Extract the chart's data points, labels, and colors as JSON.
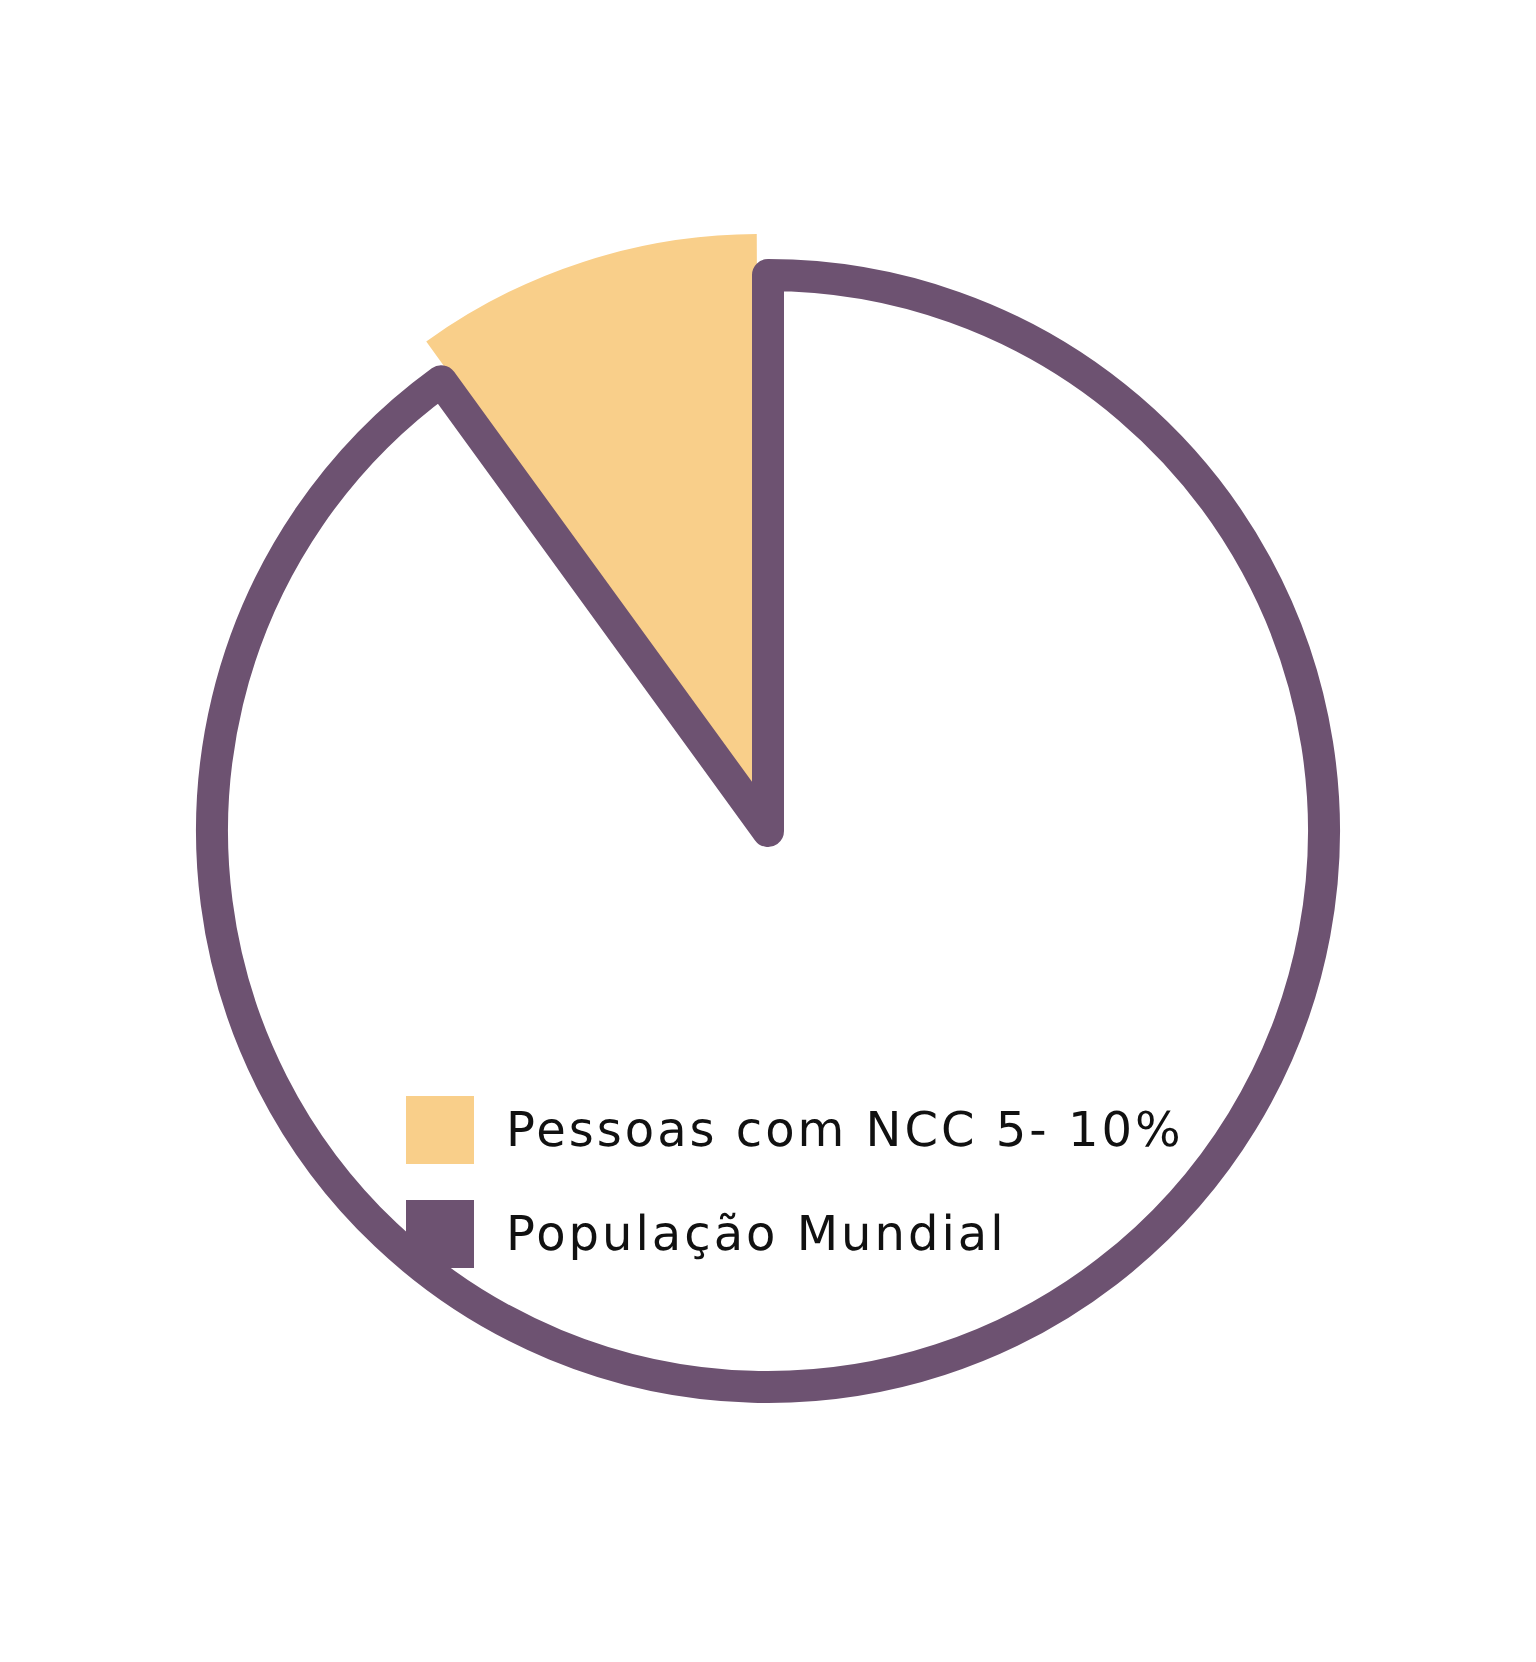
{
  "chart_data": {
    "type": "pie",
    "categories": [
      "Pessoas com NCC 5- 10%",
      "População Mundial"
    ],
    "values": [
      10,
      90
    ],
    "colors": [
      "#f9cf8a",
      "#6d5271"
    ],
    "legend": "bottom"
  }
}
